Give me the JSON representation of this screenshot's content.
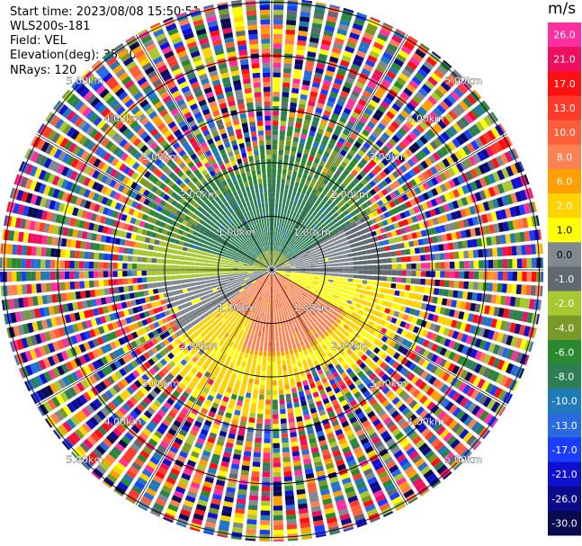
{
  "header": {
    "start_time": "Start time: 2023/08/08 15:50:51",
    "instrument": "WLS200s-181",
    "field": "Field: VEL",
    "elevation": "Elevation(deg): 35.30",
    "nrays": "NRays: 120"
  },
  "range_rings": [
    {
      "range_km": 1.0,
      "label": "1.00km"
    },
    {
      "range_km": 2.0,
      "label": "2.00km"
    },
    {
      "range_km": 3.0,
      "label": "3.00km"
    },
    {
      "range_km": 4.0,
      "label": "4.00km"
    },
    {
      "range_km": 5.0,
      "label": "5.00km"
    }
  ],
  "colorbar": {
    "unit": "m/s",
    "ticks": [
      "26.0",
      "21.0",
      "17.0",
      "13.0",
      "10.0",
      "8.0",
      "6.0",
      "2.0",
      "1.0",
      "0.0",
      "-1.0",
      "-2.0",
      "-4.0",
      "-6.0",
      "-8.0",
      "-10.0",
      "-13.0",
      "-17.0",
      "-21.0",
      "-26.0",
      "-30.0"
    ],
    "colors": [
      "#ff2fa0",
      "#ee1060",
      "#ff1010",
      "#ff3a2a",
      "#ff5e3a",
      "#ff8050",
      "#ffa000",
      "#ffd200",
      "#ffff00",
      "#808890",
      "#606870",
      "#a8c830",
      "#7a9a28",
      "#2a8a30",
      "#2d7d55",
      "#1f7ab8",
      "#2a6ae0",
      "#1a3dff",
      "#1010d0",
      "#0a0a8a",
      "#0a0a50"
    ]
  },
  "icons": {
    "ppi": "radar-ppi-display"
  }
}
